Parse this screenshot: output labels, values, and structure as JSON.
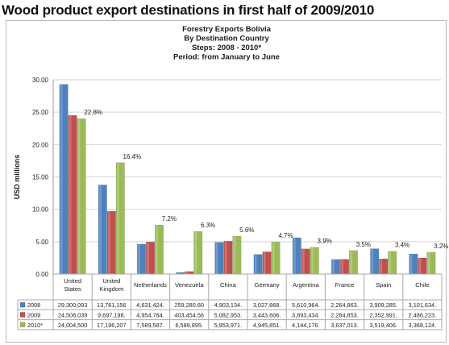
{
  "headline": "Wood product export destinations in first half of 2009/2010",
  "chart_data": {
    "type": "bar",
    "title_lines": [
      "Forestry Exports Bolivia",
      "By Destination  Country",
      "Steps: 2008 - 2010*",
      "Period: from January to June"
    ],
    "ylabel": "USD millions",
    "ylim": [
      0,
      30
    ],
    "yticks": [
      "30.00",
      "25.00",
      "20.00",
      "15.00",
      "10.00",
      "5.00",
      "0.00"
    ],
    "grid": true,
    "legend": "data-table",
    "categories": [
      "United States",
      "United Kingdom",
      "Netherlands",
      "Venezuela",
      "China",
      "Germany",
      "Argentina",
      "France",
      "Spain",
      "Chile"
    ],
    "category_lines": [
      [
        "United",
        "States"
      ],
      [
        "United",
        "Kingdom"
      ],
      [
        "Netherlands"
      ],
      [
        "Venezuela"
      ],
      [
        "China"
      ],
      [
        "Germany"
      ],
      [
        "Argentina"
      ],
      [
        "France"
      ],
      [
        "Spain"
      ],
      [
        "Chile"
      ]
    ],
    "series": [
      {
        "name": "2008",
        "color": "#4f81bd",
        "values": [
          29.3,
          13.76,
          4.63,
          0.26,
          4.9,
          3.03,
          5.61,
          2.26,
          3.91,
          3.1
        ],
        "labels": [
          "29,300,093",
          "13,761,156",
          "4,631,424.",
          "259,280.60",
          "4,903,134.",
          "3,027,868.",
          "5,610,964.",
          "2,264,863.",
          "3,909,285.",
          "3,101,634."
        ]
      },
      {
        "name": "2009",
        "color": "#c0504d",
        "values": [
          24.51,
          9.7,
          4.95,
          0.4,
          5.08,
          3.44,
          3.89,
          2.28,
          2.35,
          2.49
        ],
        "labels": [
          "24,508,039",
          "9,697,198.",
          "4,954,784.",
          "403,454.56",
          "5,082,953.",
          "3,443,606.",
          "3,893,434.",
          "2,284,853.",
          "2,352,991.",
          "2,486,223."
        ]
      },
      {
        "name": "2010*",
        "color": "#9bbb59",
        "values": [
          24.0,
          17.2,
          7.59,
          6.59,
          5.85,
          4.95,
          4.14,
          3.64,
          3.52,
          3.37
        ],
        "labels": [
          "24,004,500",
          "17,196,207",
          "7,589,587.",
          "6,589,895.",
          "5,853,971.",
          "4,945,851.",
          "4,144,176.",
          "3,637,013.",
          "3,519,406.",
          "3,368,124."
        ]
      }
    ],
    "annotations": [
      "22.8%",
      "16.4%",
      "7.2%",
      "6.3%",
      "5.6%",
      "4.7%",
      "3.9%",
      "3.5%",
      "3.4%",
      "3.2%"
    ]
  }
}
